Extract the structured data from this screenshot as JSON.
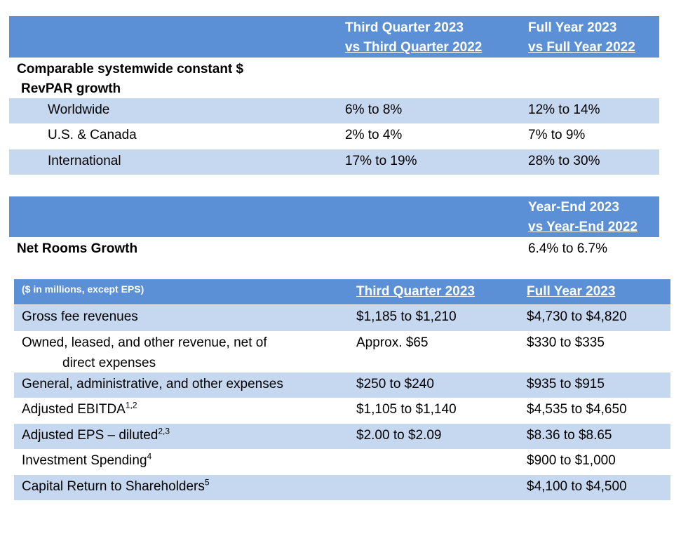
{
  "table1": {
    "col1_line1": "Third Quarter 2023",
    "col1_line2": "vs Third Quarter 2022",
    "col2_line1": "Full Year 2023",
    "col2_line2": "vs Full Year 2022",
    "section_line1": "Comparable systemwide constant $",
    "section_line2": "RevPAR growth",
    "rows": [
      {
        "label": "Worldwide",
        "q3": "6% to 8%",
        "fy": "12% to 14%"
      },
      {
        "label": "U.S. & Canada",
        "q3": "2% to 4%",
        "fy": "7% to 9%"
      },
      {
        "label": "International",
        "q3": "17% to 19%",
        "fy": "28% to 30%"
      }
    ]
  },
  "table2": {
    "col_line1": "Year-End 2023",
    "col_line2": "vs Year-End 2022",
    "row_label": "Net Rooms Growth",
    "row_value": "6.4% to 6.7%"
  },
  "table3": {
    "unit_note": "($ in millions, except EPS)",
    "col1": "Third Quarter 2023",
    "col2": "Full Year 2023",
    "rows": [
      {
        "label": "Gross fee revenues",
        "sup": "",
        "q3": "$1,185 to $1,210",
        "fy": "$4,730 to $4,820"
      },
      {
        "label": "Owned, leased, and other revenue, net of",
        "label2": "direct expenses",
        "sup": "",
        "q3": "Approx. $65",
        "fy": "$330 to $335"
      },
      {
        "label": "General, administrative, and other expenses",
        "sup": "",
        "q3": "$250 to $240",
        "fy": "$935 to $915"
      },
      {
        "label": "Adjusted EBITDA",
        "sup": "1,2",
        "q3": "$1,105 to $1,140",
        "fy": "$4,535 to $4,650"
      },
      {
        "label": "Adjusted EPS – diluted",
        "sup": "2,3",
        "q3": "$2.00 to $2.09",
        "fy": "$8.36 to $8.65"
      },
      {
        "label": "Investment Spending",
        "sup": "4",
        "q3": "",
        "fy": "$900 to $1,000"
      },
      {
        "label": "Capital Return to Shareholders",
        "sup": "5",
        "q3": "",
        "fy": "$4,100 to $4,500"
      }
    ]
  },
  "colors": {
    "header_blue": "#5b8fd6",
    "row_light_blue": "#c6d8f0"
  }
}
